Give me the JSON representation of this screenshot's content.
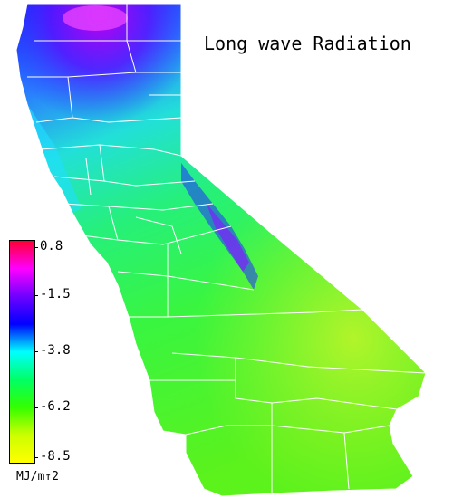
{
  "map": {
    "title": "Long wave Radiation",
    "region": "California",
    "legend": {
      "unit": "MJ/m↑2",
      "ticks": [
        "0.8",
        "-1.5",
        "-3.8",
        "-6.2",
        "-8.5"
      ],
      "colors": [
        "#ff0033",
        "#ff00ff",
        "#7000ff",
        "#0000ff",
        "#00ffff",
        "#00ff66",
        "#33ff00",
        "#ccff00",
        "#ffff00"
      ]
    }
  }
}
